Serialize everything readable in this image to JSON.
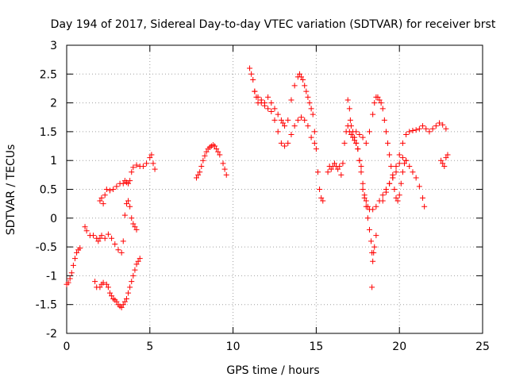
{
  "chart_data": {
    "type": "scatter",
    "title": "Day 194 of 2017, Sidereal Day-to-day VTEC variation (SDTVAR) for receiver brst",
    "xlabel": "GPS time / hours",
    "ylabel": "SDTVAR / TECUs",
    "xlim": [
      0,
      25
    ],
    "ylim": [
      -2,
      3
    ],
    "xticks": [
      "0",
      "5",
      "10",
      "15",
      "20",
      "25"
    ],
    "yticks": [
      "-2",
      "-1.5",
      "-1",
      "-0.5",
      "0",
      "0.5",
      "1",
      "1.5",
      "2",
      "2.5",
      "3"
    ],
    "grid": true,
    "legend": "none",
    "marker": "+",
    "color": "#ff0000",
    "series": [
      {
        "x": [
          0.0,
          0.1,
          0.2,
          0.3,
          0.4,
          0.5,
          0.6,
          0.7,
          0.8,
          1.1,
          1.2,
          1.4,
          1.6,
          1.8,
          1.9,
          2.0,
          2.1,
          2.3,
          2.5,
          2.7,
          2.9,
          3.1,
          3.3,
          3.4,
          3.5,
          3.6,
          3.7,
          3.8,
          3.9,
          4.0,
          4.1,
          4.2
        ],
        "values": [
          -1.15,
          -1.12,
          -1.05,
          -0.95,
          -0.82,
          -0.7,
          -0.6,
          -0.55,
          -0.52,
          -0.15,
          -0.22,
          -0.3,
          -0.3,
          -0.35,
          -0.4,
          -0.35,
          -0.3,
          -0.35,
          -0.28,
          -0.35,
          -0.45,
          -0.55,
          -0.6,
          -0.4,
          0.05,
          0.25,
          0.3,
          0.2,
          0.0,
          -0.1,
          -0.15,
          -0.2
        ]
      },
      {
        "x": [
          1.7,
          1.8,
          2.0,
          2.1,
          2.2,
          2.4,
          2.5,
          2.6,
          2.7,
          2.8,
          2.9,
          3.0,
          3.1,
          3.2,
          3.3,
          3.4,
          3.5,
          3.6,
          3.7,
          3.8,
          3.9,
          4.0,
          4.1,
          4.2,
          4.3,
          4.4
        ],
        "values": [
          -1.1,
          -1.2,
          -1.2,
          -1.15,
          -1.12,
          -1.15,
          -1.2,
          -1.3,
          -1.35,
          -1.4,
          -1.42,
          -1.45,
          -1.5,
          -1.53,
          -1.55,
          -1.5,
          -1.45,
          -1.4,
          -1.3,
          -1.2,
          -1.1,
          -1.0,
          -0.9,
          -0.8,
          -0.75,
          -0.7
        ]
      },
      {
        "x": [
          2.0,
          2.1,
          2.2,
          2.3,
          2.4,
          2.6,
          2.8,
          3.0,
          3.2,
          3.4,
          3.5,
          3.6,
          3.7,
          3.8,
          3.9,
          4.0,
          4.2,
          4.4,
          4.6,
          4.8,
          5.0,
          5.1,
          5.2,
          5.3
        ],
        "values": [
          0.3,
          0.35,
          0.25,
          0.4,
          0.5,
          0.48,
          0.5,
          0.55,
          0.6,
          0.6,
          0.65,
          0.62,
          0.6,
          0.65,
          0.8,
          0.88,
          0.92,
          0.9,
          0.9,
          0.95,
          1.05,
          1.1,
          0.95,
          0.85
        ]
      },
      {
        "x": [
          7.8,
          7.9,
          8.0,
          8.1,
          8.2,
          8.3,
          8.4,
          8.5,
          8.6,
          8.7,
          8.8,
          8.9,
          9.0,
          9.1,
          9.2,
          9.4,
          9.5,
          9.6
        ],
        "values": [
          0.7,
          0.75,
          0.8,
          0.9,
          1.0,
          1.08,
          1.15,
          1.2,
          1.23,
          1.25,
          1.27,
          1.25,
          1.2,
          1.15,
          1.1,
          0.95,
          0.85,
          0.75
        ]
      },
      {
        "x": [
          11.0,
          11.1,
          11.2,
          11.3,
          11.4,
          11.5,
          11.7,
          11.9,
          12.1,
          12.3,
          12.5,
          12.7,
          12.9,
          13.0,
          13.1,
          13.3,
          13.5,
          13.7,
          13.9,
          14.0,
          14.1,
          14.2,
          14.3,
          14.4,
          14.5,
          14.6,
          14.7,
          14.8,
          14.9,
          15.0,
          15.1,
          15.2,
          15.3,
          15.4
        ],
        "values": [
          2.6,
          2.5,
          2.4,
          2.2,
          2.1,
          2.0,
          2.05,
          2.0,
          2.1,
          2.0,
          1.9,
          1.8,
          1.7,
          1.65,
          1.6,
          1.7,
          2.05,
          2.3,
          2.45,
          2.5,
          2.45,
          2.4,
          2.3,
          2.2,
          2.1,
          2.0,
          1.9,
          1.8,
          1.5,
          1.2,
          0.8,
          0.5,
          0.35,
          0.3
        ]
      },
      {
        "x": [
          11.3,
          11.5,
          11.7,
          11.9,
          12.1,
          12.3,
          12.5,
          12.7,
          12.9,
          13.1,
          13.3,
          13.5,
          13.7,
          13.9,
          14.1,
          14.3,
          14.5,
          14.7,
          14.9
        ],
        "values": [
          2.2,
          2.1,
          2.0,
          1.95,
          1.9,
          1.85,
          1.7,
          1.5,
          1.3,
          1.25,
          1.3,
          1.45,
          1.6,
          1.7,
          1.75,
          1.7,
          1.6,
          1.4,
          1.3
        ]
      },
      {
        "x": [
          15.7,
          15.8,
          15.9,
          16.0,
          16.1,
          16.2,
          16.3,
          16.4,
          16.5,
          16.6,
          16.7,
          16.8,
          16.9,
          17.0,
          17.1,
          17.2,
          17.3,
          17.4,
          17.5,
          17.6,
          17.7,
          17.8,
          17.9,
          18.0,
          18.1,
          18.2,
          18.3,
          18.35,
          18.4,
          18.45,
          18.5,
          18.6
        ],
        "values": [
          0.8,
          0.9,
          0.85,
          0.9,
          0.95,
          0.9,
          0.85,
          0.9,
          0.75,
          0.95,
          1.3,
          1.5,
          1.6,
          1.5,
          1.45,
          1.4,
          1.35,
          1.3,
          1.2,
          1.0,
          0.8,
          0.5,
          0.35,
          0.2,
          0.0,
          -0.2,
          -0.4,
          -0.6,
          -0.75,
          -0.6,
          -0.5,
          -0.3
        ]
      },
      {
        "x": [
          16.9,
          17.0,
          17.05,
          17.1,
          17.2,
          17.3,
          17.4,
          17.5,
          17.6,
          17.7,
          17.8,
          17.9,
          18.0,
          18.1,
          18.2,
          18.4,
          18.6,
          18.8,
          19.0,
          19.2,
          19.4,
          19.6,
          19.8,
          20.0,
          20.2,
          20.4,
          20.6,
          20.8,
          21.0,
          21.2,
          21.4,
          21.5
        ],
        "values": [
          2.05,
          1.9,
          1.7,
          1.6,
          1.5,
          1.4,
          1.3,
          1.2,
          1.0,
          0.9,
          0.6,
          0.4,
          0.3,
          0.2,
          0.15,
          0.15,
          0.2,
          0.3,
          0.4,
          0.5,
          0.6,
          0.7,
          0.8,
          0.95,
          1.05,
          1.0,
          0.9,
          0.8,
          0.7,
          0.55,
          0.35,
          0.2
        ]
      },
      {
        "x": [
          17.4,
          17.6,
          17.8,
          18.0,
          18.2,
          18.4,
          18.5,
          18.6,
          18.7,
          18.8,
          18.9,
          19.0,
          19.1,
          19.2,
          19.3,
          19.4,
          19.5,
          19.6,
          19.7,
          19.8,
          19.9,
          20.0,
          20.1,
          20.2,
          20.3,
          20.4
        ],
        "values": [
          1.5,
          1.45,
          1.4,
          1.3,
          1.5,
          1.8,
          2.0,
          2.1,
          2.1,
          2.05,
          2.0,
          1.9,
          1.7,
          1.5,
          1.3,
          1.1,
          0.9,
          0.7,
          0.5,
          0.35,
          0.3,
          0.4,
          0.6,
          0.8,
          0.95,
          1.0
        ]
      },
      {
        "x": [
          19.0,
          19.2,
          19.4,
          19.6,
          19.8,
          20.0,
          20.2,
          20.4,
          20.6,
          20.8,
          21.0,
          21.2,
          21.4,
          21.6,
          21.8,
          22.0,
          22.2,
          22.4,
          22.6,
          22.8
        ],
        "values": [
          0.3,
          0.45,
          0.6,
          0.75,
          0.9,
          1.1,
          1.3,
          1.45,
          1.5,
          1.52,
          1.53,
          1.55,
          1.6,
          1.55,
          1.5,
          1.55,
          1.6,
          1.65,
          1.62,
          1.55
        ]
      },
      {
        "x": [
          22.5,
          22.6,
          22.7,
          22.8,
          22.9
        ],
        "values": [
          1.0,
          0.95,
          0.9,
          1.05,
          1.1
        ]
      },
      {
        "x": [
          18.35
        ],
        "values": [
          -1.2
        ]
      }
    ]
  }
}
